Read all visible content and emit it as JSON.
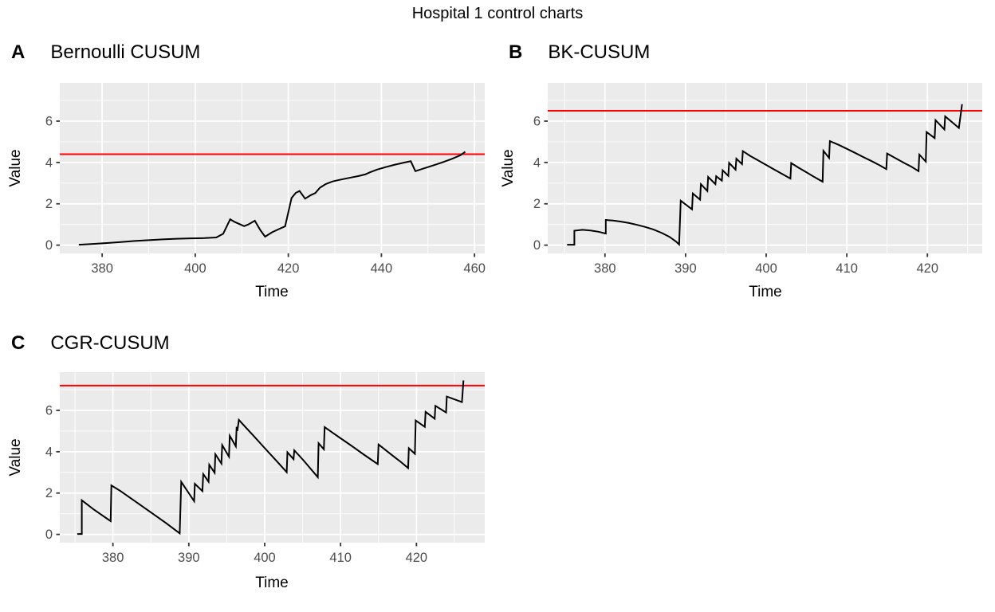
{
  "title": "Hospital 1 control charts",
  "colors": {
    "control_limit": "#FF0000",
    "series": "#000000",
    "panel_bg": "#EBEBEB",
    "grid": "#FFFFFF",
    "tick_label": "#4D4D4D",
    "tick_mark": "#333333"
  },
  "chart_data": [
    {
      "type": "line",
      "tag": "A",
      "title": "Bernoulli CUSUM",
      "xlabel": "Time",
      "ylabel": "Value",
      "xlim": [
        370.9,
        462.2
      ],
      "ylim": [
        -0.4,
        7.85
      ],
      "xticks": [
        380,
        400,
        420,
        440,
        460
      ],
      "xticks_minor": [
        390,
        410,
        430,
        450
      ],
      "yticks": [
        0,
        2,
        4,
        6
      ],
      "yticks_minor": [
        1,
        3,
        5,
        7
      ],
      "grid": true,
      "legend": false,
      "control_limit": 4.4,
      "series": {
        "color": "#000000",
        "points": [
          [
            375,
            0.02
          ],
          [
            378,
            0.06
          ],
          [
            381,
            0.1
          ],
          [
            384,
            0.15
          ],
          [
            387,
            0.2
          ],
          [
            390,
            0.24
          ],
          [
            393,
            0.28
          ],
          [
            396,
            0.31
          ],
          [
            399,
            0.33
          ],
          [
            402,
            0.34
          ],
          [
            404.5,
            0.37
          ],
          [
            406,
            0.55
          ],
          [
            407.5,
            1.25
          ],
          [
            408.5,
            1.12
          ],
          [
            410.5,
            0.92
          ],
          [
            411.4,
            1.0
          ],
          [
            412.8,
            1.18
          ],
          [
            414,
            0.72
          ],
          [
            415,
            0.41
          ],
          [
            416.5,
            0.62
          ],
          [
            418,
            0.78
          ],
          [
            419.3,
            0.91
          ],
          [
            420.7,
            2.28
          ],
          [
            421.6,
            2.53
          ],
          [
            422.4,
            2.62
          ],
          [
            423.6,
            2.25
          ],
          [
            424.8,
            2.42
          ],
          [
            425.8,
            2.52
          ],
          [
            426.8,
            2.78
          ],
          [
            428,
            2.95
          ],
          [
            429.5,
            3.08
          ],
          [
            431,
            3.16
          ],
          [
            433,
            3.25
          ],
          [
            435,
            3.34
          ],
          [
            436.5,
            3.42
          ],
          [
            437.5,
            3.52
          ],
          [
            439,
            3.65
          ],
          [
            441,
            3.78
          ],
          [
            443,
            3.9
          ],
          [
            445,
            4.0
          ],
          [
            446.3,
            4.06
          ],
          [
            447.3,
            3.58
          ],
          [
            449,
            3.7
          ],
          [
            451,
            3.85
          ],
          [
            453,
            4.0
          ],
          [
            455,
            4.16
          ],
          [
            457,
            4.35
          ],
          [
            458,
            4.52
          ]
        ]
      }
    },
    {
      "type": "line",
      "tag": "B",
      "title": "BK-CUSUM",
      "xlabel": "Time",
      "ylabel": "Value",
      "xlim": [
        372.9,
        426.8
      ],
      "ylim": [
        -0.4,
        7.85
      ],
      "xticks": [
        380,
        390,
        400,
        410,
        420
      ],
      "xticks_minor": [
        375,
        385,
        395,
        405,
        415,
        425
      ],
      "yticks": [
        0,
        2,
        4,
        6
      ],
      "yticks_minor": [
        1,
        3,
        5,
        7
      ],
      "grid": true,
      "legend": false,
      "control_limit": 6.5,
      "series": {
        "color": "#000000",
        "points": [
          [
            375.3,
            0.02
          ],
          [
            376.2,
            0.02
          ],
          [
            376.2,
            0.7
          ],
          [
            377.2,
            0.74
          ],
          [
            378.2,
            0.71
          ],
          [
            379.2,
            0.65
          ],
          [
            380.1,
            0.56
          ],
          [
            380.1,
            1.22
          ],
          [
            381,
            1.19
          ],
          [
            382,
            1.14
          ],
          [
            383,
            1.07
          ],
          [
            384,
            0.98
          ],
          [
            385,
            0.88
          ],
          [
            386,
            0.76
          ],
          [
            387,
            0.6
          ],
          [
            388,
            0.4
          ],
          [
            388.8,
            0.18
          ],
          [
            389.2,
            0.03
          ],
          [
            389.4,
            2.15
          ],
          [
            390.8,
            1.73
          ],
          [
            390.9,
            2.5
          ],
          [
            391.8,
            2.2
          ],
          [
            391.9,
            2.95
          ],
          [
            392.7,
            2.62
          ],
          [
            392.8,
            3.3
          ],
          [
            393.7,
            2.95
          ],
          [
            393.8,
            3.33
          ],
          [
            394.5,
            3.12
          ],
          [
            394.6,
            3.62
          ],
          [
            395.3,
            3.35
          ],
          [
            395.4,
            3.98
          ],
          [
            396.2,
            3.65
          ],
          [
            396.3,
            4.18
          ],
          [
            397,
            3.92
          ],
          [
            397.1,
            4.55
          ],
          [
            398,
            4.32
          ],
          [
            399,
            4.1
          ],
          [
            400,
            3.88
          ],
          [
            401,
            3.66
          ],
          [
            402,
            3.44
          ],
          [
            403,
            3.22
          ],
          [
            403.1,
            3.97
          ],
          [
            404,
            3.75
          ],
          [
            405,
            3.52
          ],
          [
            406,
            3.29
          ],
          [
            407,
            3.07
          ],
          [
            407.1,
            4.56
          ],
          [
            407.8,
            4.22
          ],
          [
            407.9,
            5.03
          ],
          [
            409,
            4.85
          ],
          [
            410,
            4.66
          ],
          [
            411,
            4.47
          ],
          [
            412,
            4.27
          ],
          [
            413,
            4.08
          ],
          [
            414,
            3.88
          ],
          [
            414.9,
            3.68
          ],
          [
            415,
            4.43
          ],
          [
            416,
            4.22
          ],
          [
            417,
            4.0
          ],
          [
            418,
            3.8
          ],
          [
            418.9,
            3.58
          ],
          [
            419,
            4.38
          ],
          [
            419.8,
            4.04
          ],
          [
            419.9,
            5.47
          ],
          [
            420.9,
            5.18
          ],
          [
            421,
            6.05
          ],
          [
            422.1,
            5.6
          ],
          [
            422.2,
            6.23
          ],
          [
            423.9,
            5.67
          ],
          [
            424.3,
            6.82
          ]
        ]
      }
    },
    {
      "type": "line",
      "tag": "C",
      "title": "CGR-CUSUM",
      "xlabel": "Time",
      "ylabel": "Value",
      "xlim": [
        373.0,
        429.0
      ],
      "ylim": [
        -0.4,
        7.85
      ],
      "xticks": [
        380,
        390,
        400,
        410,
        420
      ],
      "xticks_minor": [
        375,
        385,
        395,
        405,
        415,
        425
      ],
      "yticks": [
        0,
        2,
        4,
        6
      ],
      "yticks_minor": [
        1,
        3,
        5,
        7
      ],
      "grid": true,
      "legend": false,
      "control_limit": 7.2,
      "series": {
        "color": "#000000",
        "points": [
          [
            375.3,
            0.02
          ],
          [
            375.9,
            0.02
          ],
          [
            375.9,
            1.65
          ],
          [
            377.5,
            1.2
          ],
          [
            379.7,
            0.64
          ],
          [
            379.8,
            2.37
          ],
          [
            381,
            2.1
          ],
          [
            383,
            1.58
          ],
          [
            385,
            1.07
          ],
          [
            387,
            0.55
          ],
          [
            388.8,
            0.05
          ],
          [
            389,
            2.54
          ],
          [
            390.7,
            1.61
          ],
          [
            390.8,
            2.45
          ],
          [
            391.8,
            2.1
          ],
          [
            391.9,
            2.92
          ],
          [
            392.6,
            2.55
          ],
          [
            392.7,
            3.37
          ],
          [
            393.4,
            2.98
          ],
          [
            393.5,
            3.88
          ],
          [
            394.3,
            3.43
          ],
          [
            394.4,
            4.32
          ],
          [
            395.3,
            3.76
          ],
          [
            395.4,
            4.77
          ],
          [
            396.2,
            4.26
          ],
          [
            396.3,
            5.2
          ],
          [
            396.4,
            5.0
          ],
          [
            396.6,
            5.54
          ],
          [
            397.5,
            5.18
          ],
          [
            398.5,
            4.78
          ],
          [
            399.5,
            4.38
          ],
          [
            400.5,
            3.98
          ],
          [
            401.5,
            3.58
          ],
          [
            402.9,
            3.01
          ],
          [
            403,
            3.97
          ],
          [
            403.8,
            3.64
          ],
          [
            403.9,
            4.07
          ],
          [
            405,
            3.63
          ],
          [
            406,
            3.2
          ],
          [
            407,
            2.77
          ],
          [
            407.1,
            4.41
          ],
          [
            407.8,
            4.12
          ],
          [
            407.9,
            5.19
          ],
          [
            409,
            4.91
          ],
          [
            410,
            4.65
          ],
          [
            411,
            4.4
          ],
          [
            412,
            4.14
          ],
          [
            413,
            3.88
          ],
          [
            414,
            3.63
          ],
          [
            414.9,
            3.4
          ],
          [
            415,
            4.35
          ],
          [
            416,
            4.06
          ],
          [
            417,
            3.77
          ],
          [
            418,
            3.49
          ],
          [
            418.9,
            3.21
          ],
          [
            419,
            4.17
          ],
          [
            419.8,
            3.9
          ],
          [
            419.9,
            5.51
          ],
          [
            421.1,
            5.2
          ],
          [
            421.2,
            5.93
          ],
          [
            422.4,
            5.6
          ],
          [
            422.5,
            6.22
          ],
          [
            423.9,
            5.9
          ],
          [
            424,
            6.67
          ],
          [
            426,
            6.4
          ],
          [
            426.2,
            7.45
          ]
        ]
      }
    }
  ]
}
